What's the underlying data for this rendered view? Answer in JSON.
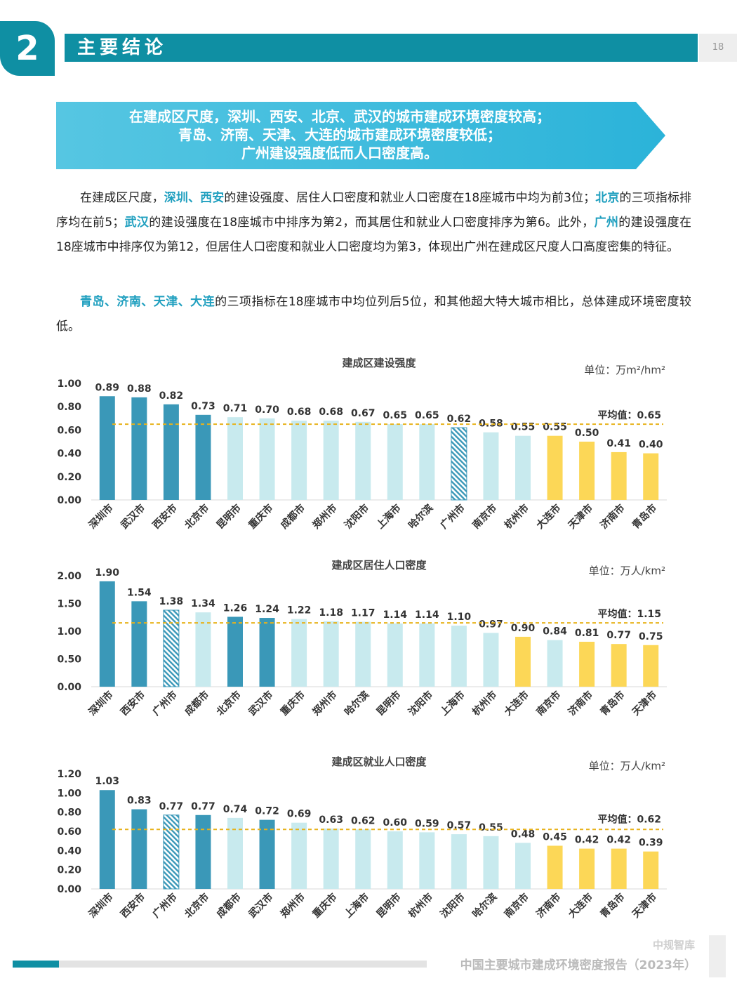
{
  "header": {
    "section_number": "2",
    "section_title": "主要结论",
    "page_number": "18"
  },
  "banner": {
    "lines": [
      "在建成区尺度，深圳、西安、北京、武汉的城市建成环境密度较高；",
      "青岛、济南、天津、大连的城市建成环境密度较低；",
      "广州建设强度低而人口密度高。"
    ]
  },
  "paragraphs": [
    [
      {
        "t": "在建成区尺度，",
        "hl": false
      },
      {
        "t": "深圳、西安",
        "hl": true
      },
      {
        "t": "的建设强度、居住人口密度和就业人口密度在18座城市中均为前3位；",
        "hl": false
      },
      {
        "t": "北京",
        "hl": true
      },
      {
        "t": "的三项指标排序均在前5；",
        "hl": false
      },
      {
        "t": "武汉",
        "hl": true
      },
      {
        "t": "的建设强度在18座城市中排序为第2，而其居住和就业人口密度排序为第6。此外，",
        "hl": false
      },
      {
        "t": "广州",
        "hl": true
      },
      {
        "t": "的建设强度在18座城市中排序仅为第12，但居住人口密度和就业人口密度均为第3，体现出广州在建成区尺度人口高度密集的特征。",
        "hl": false
      }
    ],
    [
      {
        "t": "青岛、济南、天津、大连",
        "hl": true
      },
      {
        "t": "的三项指标在18座城市中均位列后5位，和其他超大特大城市相比，总体建成环境密度较低。",
        "hl": false
      }
    ]
  ],
  "colors": {
    "dark": "#3a98b8",
    "light": "#c8eaee",
    "yellow": "#fcd757",
    "hatch": "#3a98b8",
    "avg_line": "#e7b21a"
  },
  "chart_data": [
    {
      "type": "bar",
      "title": "建成区建设强度",
      "unit": "单位：万m²/hm²",
      "ylim": [
        0,
        1.0
      ],
      "yticks": [
        "0.00",
        "0.20",
        "0.40",
        "0.60",
        "0.80",
        "1.00"
      ],
      "average": 0.65,
      "average_label": "平均值：0.65",
      "categories": [
        "深圳市",
        "武汉市",
        "西安市",
        "北京市",
        "昆明市",
        "重庆市",
        "成都市",
        "郑州市",
        "沈阳市",
        "上海市",
        "哈尔滨",
        "广州市",
        "南京市",
        "杭州市",
        "大连市",
        "天津市",
        "济南市",
        "青岛市"
      ],
      "values": [
        0.89,
        0.88,
        0.82,
        0.73,
        0.71,
        0.7,
        0.68,
        0.68,
        0.67,
        0.65,
        0.65,
        0.62,
        0.58,
        0.55,
        0.55,
        0.5,
        0.41,
        0.4
      ],
      "labels": [
        "0.89",
        "0.88",
        "0.82",
        "0.73",
        "0.71",
        "0.70",
        "0.68",
        "0.68",
        "0.67",
        "0.65",
        "0.65",
        "0.62",
        "0.58",
        "0.55",
        "0.55",
        "0.50",
        "0.41",
        "0.40"
      ],
      "styles": [
        "dark",
        "dark",
        "dark",
        "dark",
        "light",
        "light",
        "light",
        "light",
        "light",
        "light",
        "light",
        "hatch",
        "light",
        "light",
        "yellow",
        "yellow",
        "yellow",
        "yellow"
      ]
    },
    {
      "type": "bar",
      "title": "建成区居住人口密度",
      "unit": "单位：万人/km²",
      "ylim": [
        0,
        2.0
      ],
      "yticks": [
        "0.00",
        "0.50",
        "1.00",
        "1.50",
        "2.00"
      ],
      "average": 1.15,
      "average_label": "平均值：1.15",
      "categories": [
        "深圳市",
        "西安市",
        "广州市",
        "成都市",
        "北京市",
        "武汉市",
        "重庆市",
        "郑州市",
        "哈尔滨",
        "昆明市",
        "沈阳市",
        "上海市",
        "杭州市",
        "大连市",
        "南京市",
        "济南市",
        "青岛市",
        "天津市"
      ],
      "values": [
        1.9,
        1.54,
        1.38,
        1.34,
        1.26,
        1.24,
        1.22,
        1.18,
        1.17,
        1.14,
        1.14,
        1.1,
        0.97,
        0.9,
        0.84,
        0.81,
        0.77,
        0.75
      ],
      "labels": [
        "1.90",
        "1.54",
        "1.38",
        "1.34",
        "1.26",
        "1.24",
        "1.22",
        "1.18",
        "1.17",
        "1.14",
        "1.14",
        "1.10",
        "0.97",
        "0.90",
        "0.84",
        "0.81",
        "0.77",
        "0.75"
      ],
      "styles": [
        "dark",
        "dark",
        "hatch",
        "light",
        "dark",
        "dark",
        "light",
        "light",
        "light",
        "light",
        "light",
        "light",
        "light",
        "yellow",
        "light",
        "yellow",
        "yellow",
        "yellow"
      ]
    },
    {
      "type": "bar",
      "title": "建成区就业人口密度",
      "unit": "单位：万人/km²",
      "ylim": [
        0,
        1.2
      ],
      "yticks": [
        "0.00",
        "0.20",
        "0.40",
        "0.60",
        "0.80",
        "1.00",
        "1.20"
      ],
      "average": 0.62,
      "average_label": "平均值：0.62",
      "categories": [
        "深圳市",
        "西安市",
        "广州市",
        "北京市",
        "成都市",
        "武汉市",
        "郑州市",
        "重庆市",
        "上海市",
        "昆明市",
        "杭州市",
        "沈阳市",
        "哈尔滨",
        "南京市",
        "济南市",
        "大连市",
        "青岛市",
        "天津市"
      ],
      "values": [
        1.03,
        0.83,
        0.77,
        0.77,
        0.74,
        0.72,
        0.69,
        0.63,
        0.62,
        0.6,
        0.59,
        0.57,
        0.55,
        0.48,
        0.45,
        0.42,
        0.42,
        0.39
      ],
      "labels": [
        "1.03",
        "0.83",
        "0.77",
        "0.77",
        "0.74",
        "0.72",
        "0.69",
        "0.63",
        "0.62",
        "0.60",
        "0.59",
        "0.57",
        "0.55",
        "0.48",
        "0.45",
        "0.42",
        "0.42",
        "0.39"
      ],
      "styles": [
        "dark",
        "dark",
        "hatch",
        "dark",
        "light",
        "dark",
        "light",
        "light",
        "light",
        "light",
        "light",
        "light",
        "light",
        "light",
        "yellow",
        "yellow",
        "yellow",
        "yellow"
      ]
    }
  ],
  "footer": {
    "brand": "中规智库",
    "report_title": "中国主要城市建成环境密度报告（2023年）"
  }
}
